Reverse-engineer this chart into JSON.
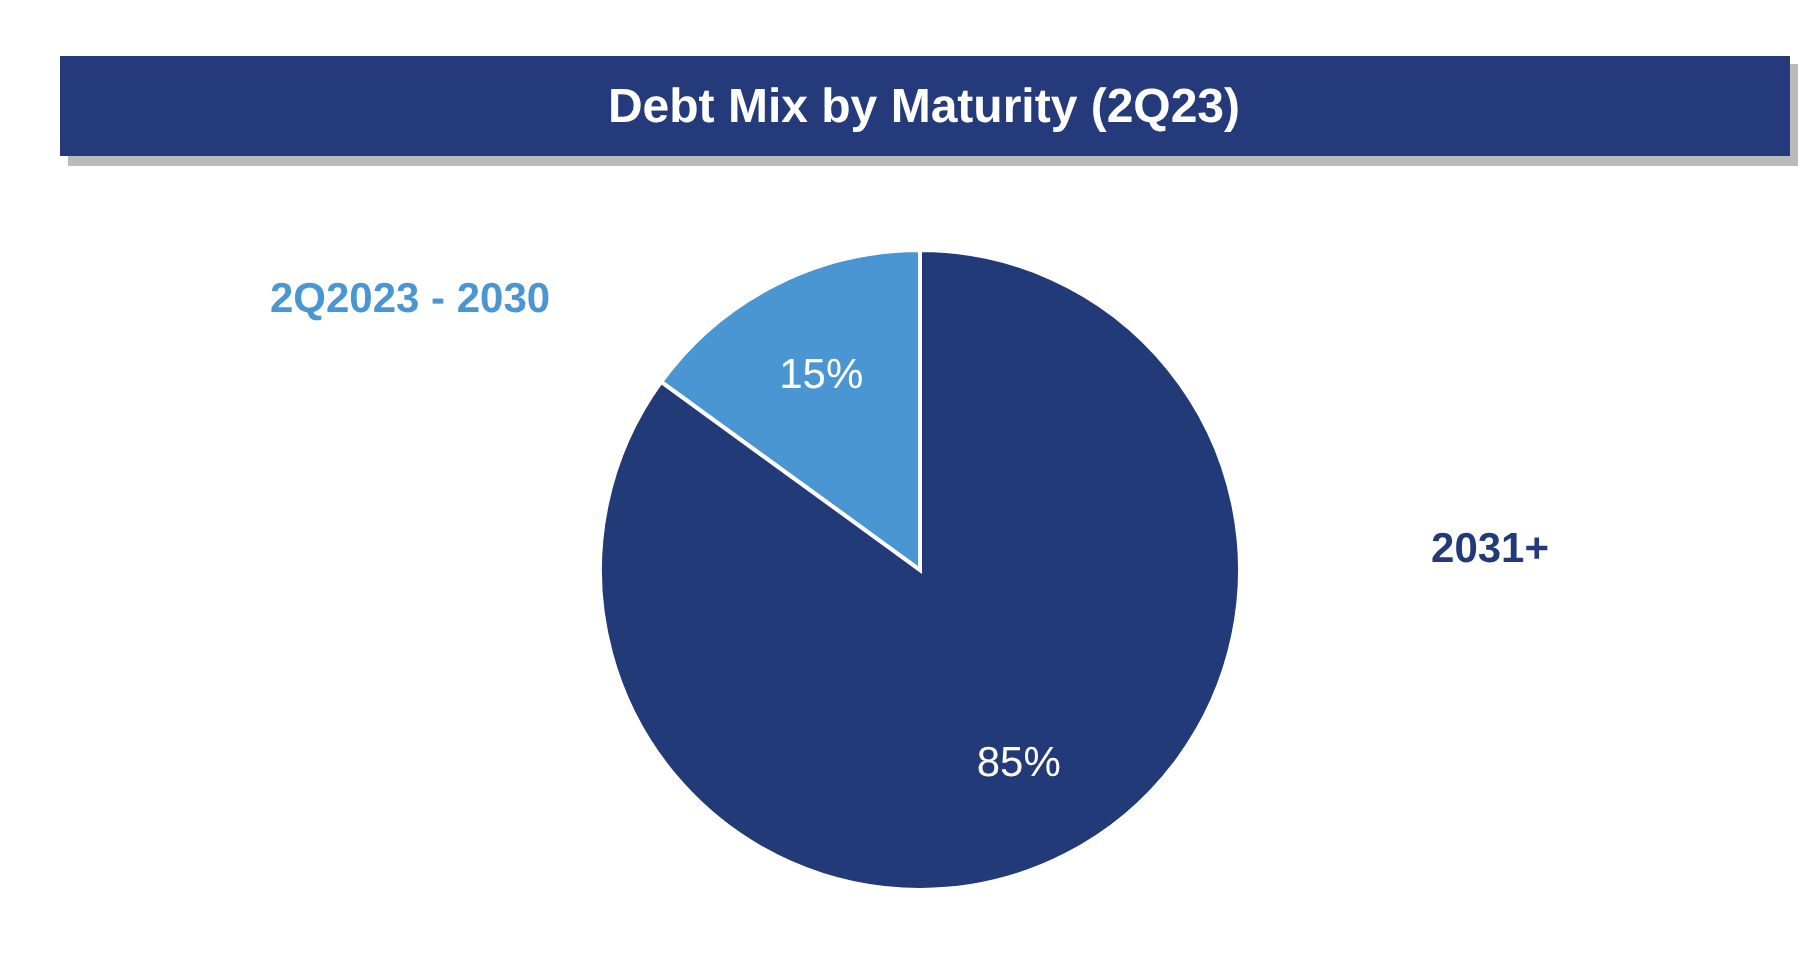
{
  "chart_data": {
    "type": "pie",
    "title": "Debt Mix by Maturity (2Q23)",
    "categories": [
      "2Q2023 - 2030",
      "2031+"
    ],
    "values": [
      15,
      85
    ],
    "value_labels": [
      "15%",
      "85%"
    ],
    "colors": [
      "#4a96d3",
      "#233a78"
    ]
  }
}
